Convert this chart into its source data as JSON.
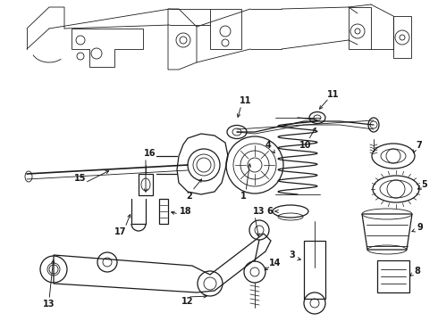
{
  "bg_color": "#ffffff",
  "line_color": "#1a1a1a",
  "fig_width": 4.9,
  "fig_height": 3.6,
  "dpi": 100,
  "label_fontsize": 7.0,
  "lw_thin": 0.6,
  "lw_med": 0.9,
  "lw_thick": 1.2
}
